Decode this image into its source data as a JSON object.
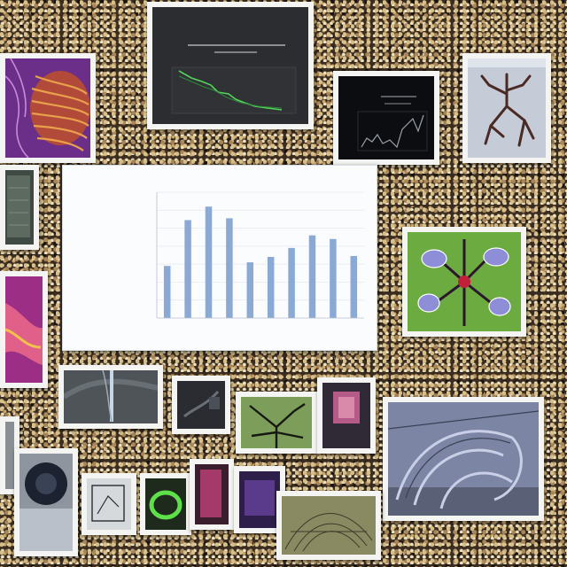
{
  "chart_data": {
    "type": "bar",
    "title": "",
    "xlabel": "",
    "ylabel": "",
    "categories": [
      "",
      "",
      "",
      "",
      "",
      "",
      "",
      "",
      "",
      ""
    ],
    "values": [
      58,
      109,
      124,
      111,
      62,
      68,
      78,
      92,
      88,
      69
    ],
    "ylim": [
      0,
      140
    ],
    "grid": true,
    "bar_color": "#8aa9d6"
  },
  "colors": {
    "board_background": "#3a2c1f",
    "card_frame": "#f4f4f2",
    "chart_background": "#fbfcfe"
  }
}
